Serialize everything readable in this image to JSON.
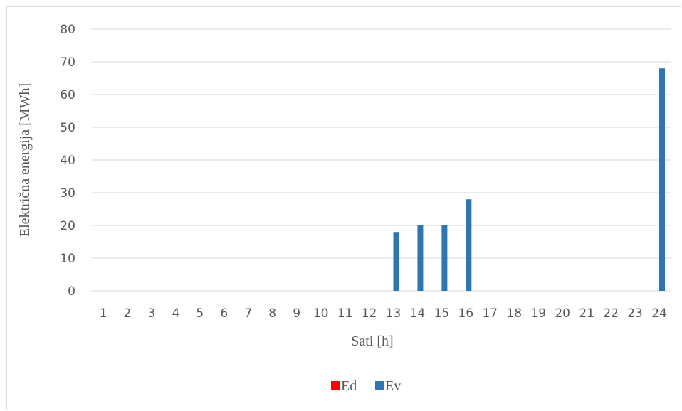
{
  "chart_data": {
    "type": "bar",
    "title": "",
    "xlabel": "Sati [h]",
    "ylabel": "Električna energija [MWh]",
    "ylim": [
      0,
      80
    ],
    "yticks": [
      0,
      10,
      20,
      30,
      40,
      50,
      60,
      70,
      80
    ],
    "grid": true,
    "legend_position": "bottom",
    "categories": [
      "1",
      "2",
      "3",
      "4",
      "5",
      "6",
      "7",
      "8",
      "9",
      "10",
      "11",
      "12",
      "13",
      "14",
      "15",
      "16",
      "17",
      "18",
      "19",
      "20",
      "21",
      "22",
      "23",
      "24"
    ],
    "series": [
      {
        "name": "Ed",
        "color": "#ff0000",
        "values": [
          0,
          0,
          0,
          0,
          0,
          0,
          0,
          0,
          0,
          0,
          0,
          0,
          0,
          0,
          0,
          0,
          0,
          0,
          0,
          0,
          0,
          0,
          0,
          0
        ]
      },
      {
        "name": "Ev",
        "color": "#2e75b6",
        "values": [
          0,
          0,
          0,
          0,
          0,
          0,
          0,
          0,
          0,
          0,
          0,
          0,
          18,
          20,
          20,
          28,
          0,
          0,
          0,
          0,
          0,
          0,
          0,
          68
        ]
      }
    ]
  }
}
